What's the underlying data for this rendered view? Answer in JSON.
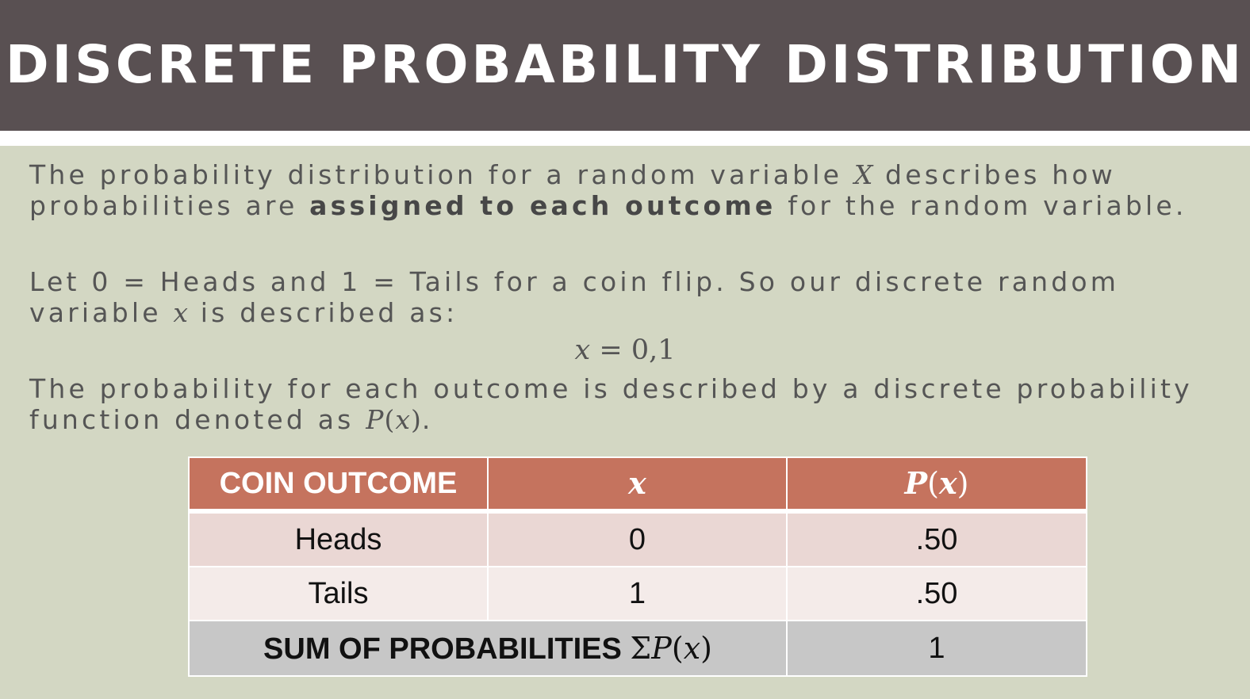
{
  "title": "DISCRETE PROBABILITY DISTRIBUTION",
  "paragraph1": {
    "text_a": "The probability distribution for a random variable ",
    "var": "X",
    "text_b": " describes how",
    "text_c": "probabilities are ",
    "bold": "assigned to each outcome",
    "text_d": " for the random variable."
  },
  "paragraph2": {
    "line1": "Let 0 = Heads and 1 = Tails for a coin flip. So our discrete random",
    "text_a": "variable ",
    "var": "x",
    "text_b": " is described as:"
  },
  "equation": {
    "var": "x",
    "rhs": " = 0,1"
  },
  "paragraph3": {
    "line1": "The probability for each outcome is described by a discrete probability",
    "text_a": "function denoted as ",
    "func": "P",
    "open": "(",
    "var": "x",
    "close": ")",
    "text_b": "."
  },
  "table": {
    "headers": {
      "outcome": "COIN OUTCOME",
      "x": "x",
      "px_func": "P",
      "px_open": "(",
      "px_var": "x",
      "px_close": ")"
    },
    "rows": [
      {
        "outcome": "Heads",
        "x": "0",
        "p": ".50"
      },
      {
        "outcome": "Tails",
        "x": "1",
        "p": ".50"
      }
    ],
    "sum": {
      "label": "SUM OF PROBABILITIES ",
      "sigma": "Σ",
      "func": "P",
      "open": "(",
      "var": "x",
      "close": ")",
      "value": "1"
    }
  },
  "colors": {
    "header_bg": "#595052",
    "slide_bg": "#d3d7c3",
    "table_header": "#c5735e",
    "row1": "#ead7d4",
    "row2": "#f4ebe9",
    "sum_row": "#c7c7c7",
    "body_text": "#555555"
  }
}
